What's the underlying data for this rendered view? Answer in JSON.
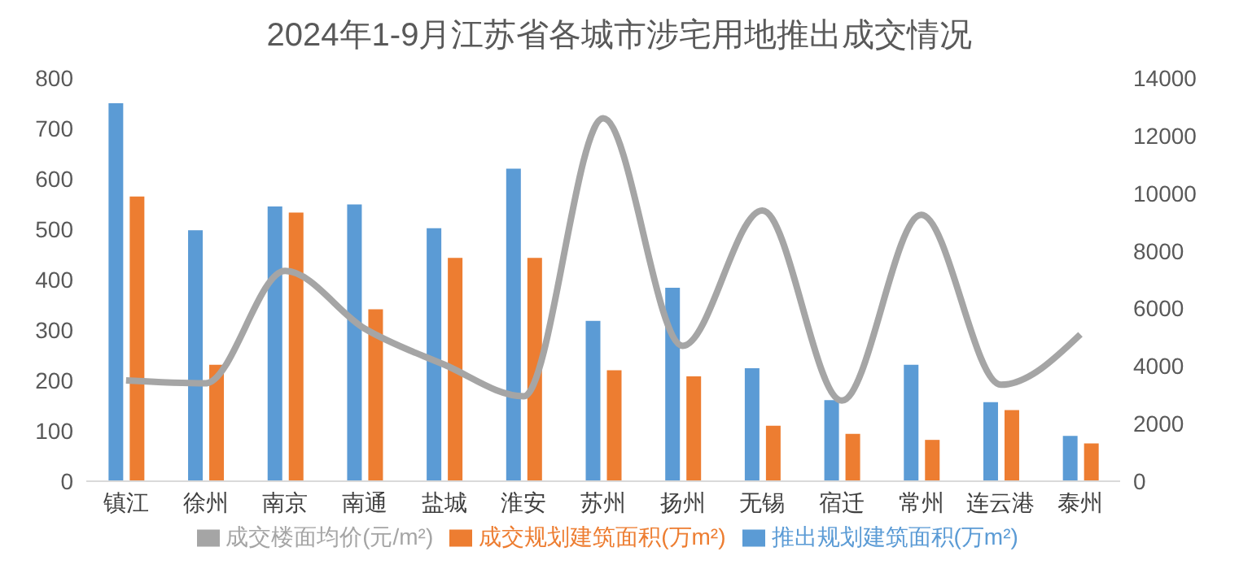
{
  "chart_data": {
    "type": "bar",
    "title": "2024年1-9月江苏省各城市涉宅用地推出成交情况",
    "categories": [
      "镇江",
      "徐州",
      "南京",
      "南通",
      "盐城",
      "淮安",
      "苏州",
      "扬州",
      "无锡",
      "宿迁",
      "常州",
      "连云港",
      "泰州"
    ],
    "series": [
      {
        "name": "推出规划建筑面积(万m²)",
        "color": "#5b9bd5",
        "values": [
          750,
          498,
          545,
          549,
          502,
          620,
          318,
          384,
          224,
          161,
          231,
          157,
          90
        ]
      },
      {
        "name": "成交规划建筑面积(万m²)",
        "color": "#ed7d31",
        "values": [
          565,
          231,
          533,
          341,
          443,
          443,
          220,
          208,
          110,
          94,
          82,
          141,
          75
        ]
      },
      {
        "name": "成交楼面均价(元/m²)",
        "color": "#a5a5a5",
        "type": "line",
        "axis": "y2",
        "marker": "none",
        "values": [
          3500,
          3400,
          7300,
          5300,
          4050,
          2950,
          12600,
          4700,
          9400,
          2800,
          9250,
          3350,
          5100
        ]
      }
    ],
    "ylim": [
      0,
      800
    ],
    "yticks": [
      0,
      100,
      200,
      300,
      400,
      500,
      600,
      700,
      800
    ],
    "y2lim": [
      0,
      14000
    ],
    "y2ticks": [
      0,
      2000,
      4000,
      6000,
      8000,
      10000,
      12000,
      14000
    ],
    "grid": false,
    "legend": "bottom"
  }
}
